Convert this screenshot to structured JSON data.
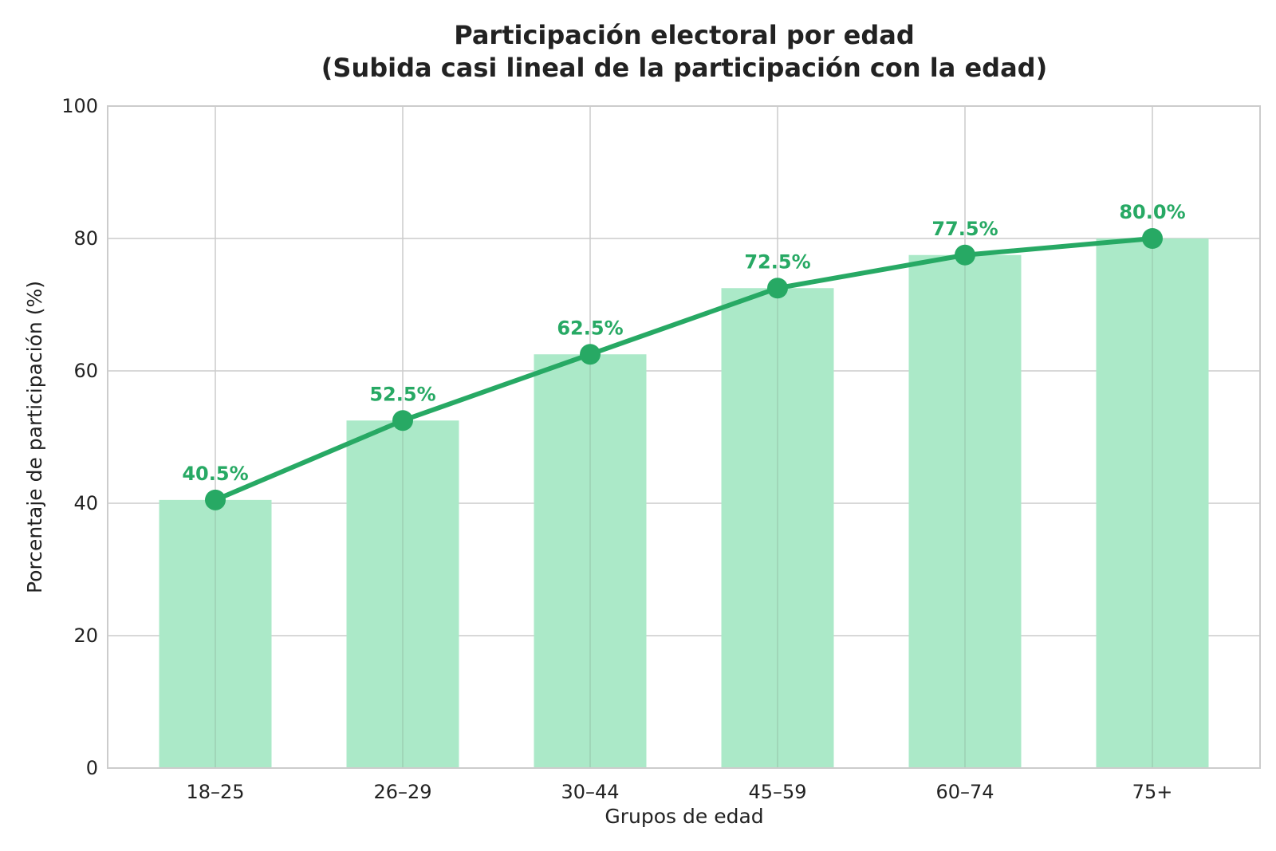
{
  "chart_data": {
    "type": "bar",
    "title": "Participación electoral por edad",
    "subtitle": "(Subida casi lineal de la participación con la edad)",
    "xlabel": "Grupos de edad",
    "ylabel": "Porcentaje de participación (%)",
    "categories": [
      "18–25",
      "26–29",
      "30–44",
      "45–59",
      "60–74",
      "75+"
    ],
    "values": [
      40.5,
      52.5,
      62.5,
      72.5,
      77.5,
      80.0
    ],
    "data_labels": [
      "40.5%",
      "52.5%",
      "62.5%",
      "72.5%",
      "77.5%",
      "80.0%"
    ],
    "ylim": [
      0,
      100
    ],
    "yticks": [
      "0",
      "20",
      "40",
      "60",
      "80",
      "100"
    ],
    "grid": true,
    "overlay": "line with markers",
    "colors": {
      "bar": "#abe9c8",
      "line": "#27a964",
      "label": "#27a964",
      "grid": "#cccccc"
    }
  }
}
